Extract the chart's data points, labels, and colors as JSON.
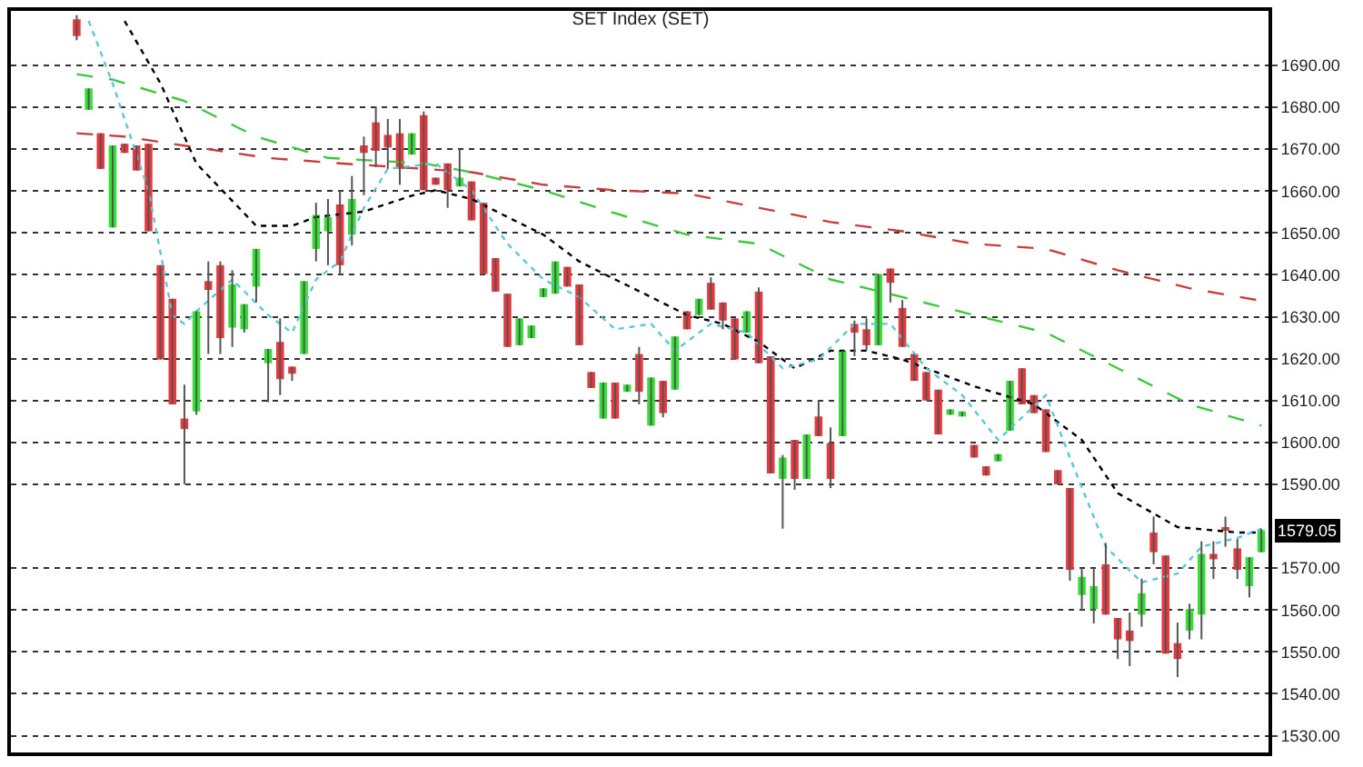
{
  "chart_data": {
    "type": "candlestick",
    "title": "SET Index (SET)",
    "categories": [
      null,
      null,
      null,
      null,
      null,
      null,
      null,
      null,
      null,
      null,
      null,
      null,
      null,
      null,
      null,
      null,
      null,
      null,
      null,
      null,
      null,
      null,
      null,
      null,
      null,
      null,
      null,
      null,
      null,
      null,
      null,
      null,
      null,
      null,
      null,
      null,
      null,
      null,
      null,
      null,
      null,
      null,
      null,
      null,
      null,
      null,
      null,
      null,
      null,
      null,
      null,
      null,
      null,
      null,
      null,
      null,
      null,
      null,
      null,
      null,
      null,
      null,
      null,
      null,
      null,
      null,
      null,
      null,
      null,
      null,
      null,
      null,
      null,
      null,
      null,
      null,
      null,
      null,
      null,
      null,
      null,
      null,
      null,
      null,
      null,
      null,
      null,
      null,
      null,
      null,
      null,
      null,
      null,
      null,
      null,
      null,
      null,
      null,
      null,
      null
    ],
    "ohlc": [
      [
        1701,
        1702,
        1696,
        1697
      ],
      [
        1679.4,
        1684.5,
        1679.4,
        1684.5
      ],
      [
        1673.8,
        1673.8,
        1665.3,
        1665.3
      ],
      [
        1651.3,
        1670.9,
        1651.3,
        1670.9
      ],
      [
        1671.3,
        1671.3,
        1669.1,
        1669.1
      ],
      [
        1670.9,
        1670.9,
        1664.9,
        1664.9
      ],
      [
        1671.3,
        1671.3,
        1650.4,
        1650.4
      ],
      [
        1642.3,
        1642.3,
        1619.8,
        1619.8
      ],
      [
        1634.3,
        1634.3,
        1609.1,
        1609.1
      ],
      [
        1605.7,
        1613.8,
        1590,
        1603.2
      ],
      [
        1607.4,
        1631.3,
        1606.6,
        1631.3
      ],
      [
        1638.5,
        1643.2,
        1621.1,
        1636.4
      ],
      [
        1642.3,
        1643.2,
        1621.1,
        1624.9
      ],
      [
        1627.4,
        1641.1,
        1622.8,
        1637.7
      ],
      [
        1627.0,
        1633.0,
        1626.2,
        1633.0
      ],
      [
        1637.2,
        1646.2,
        1633.4,
        1646.2
      ],
      [
        1618.9,
        1622.3,
        1609.6,
        1622.3
      ],
      [
        1624.0,
        1629.6,
        1611.3,
        1615.1
      ],
      [
        1618.1,
        1618.1,
        1614.7,
        1616.4
      ],
      [
        1621.1,
        1638.5,
        1621.1,
        1638.5
      ],
      [
        1646.2,
        1657.2,
        1643.2,
        1654.3
      ],
      [
        1650.4,
        1658.1,
        1642.3,
        1653.8
      ],
      [
        1656.8,
        1660.2,
        1640,
        1642.3
      ],
      [
        1649.6,
        1663.6,
        1647,
        1658.1
      ],
      [
        1670.9,
        1673.0,
        1659.0,
        1669.1
      ],
      [
        1676.4,
        1680.2,
        1665.7,
        1669.6
      ],
      [
        1673.4,
        1677.2,
        1665.3,
        1670.4
      ],
      [
        1673.8,
        1677.2,
        1661.5,
        1665.3
      ],
      [
        1668.7,
        1673.8,
        1668.7,
        1673.8
      ],
      [
        1678.1,
        1679,
        1660.2,
        1660.2
      ],
      [
        1663.2,
        1663.2,
        1661.5,
        1661.5
      ],
      [
        1666.6,
        1666.6,
        1656,
        1660.2
      ],
      [
        1661.1,
        1670,
        1661.1,
        1663.2
      ],
      [
        1662.3,
        1662.3,
        1653.0,
        1653.0
      ],
      [
        1657.2,
        1657.2,
        1640.2,
        1640.2
      ],
      [
        1644.0,
        1644.0,
        1636.0,
        1636.0
      ],
      [
        1635.5,
        1635.5,
        1622.8,
        1622.8
      ],
      [
        1623.2,
        1629.6,
        1623.2,
        1629.6
      ],
      [
        1624.9,
        1627.9,
        1624.9,
        1627.9
      ],
      [
        1634.7,
        1636.8,
        1634.7,
        1636.8
      ],
      [
        1635.5,
        1643.2,
        1635.5,
        1643.2
      ],
      [
        1641.9,
        1641.9,
        1637.2,
        1637.2
      ],
      [
        1637.7,
        1637.7,
        1623.2,
        1623.2
      ],
      [
        1616.8,
        1616.8,
        1613.0,
        1613.0
      ],
      [
        1605.7,
        1614.3,
        1605.7,
        1614.3
      ],
      [
        1614.3,
        1614.3,
        1605.7,
        1605.7
      ],
      [
        1612.1,
        1613.8,
        1612.1,
        1613.8
      ],
      [
        1621.1,
        1622.8,
        1609.1,
        1612.1
      ],
      [
        1604.0,
        1615.5,
        1604.0,
        1615.5
      ],
      [
        1614.7,
        1614.7,
        1606,
        1607.0
      ],
      [
        1612.6,
        1625.3,
        1612.6,
        1625.3
      ],
      [
        1631.3,
        1631.3,
        1627.0,
        1627.0
      ],
      [
        1630.4,
        1634.3,
        1630.4,
        1634.3
      ],
      [
        1638.1,
        1639.4,
        1631.7,
        1631.7
      ],
      [
        1633.4,
        1633.4,
        1627,
        1629.1
      ],
      [
        1629.6,
        1629.6,
        1619.8,
        1619.8
      ],
      [
        1626.2,
        1631.3,
        1626.2,
        1631.3
      ],
      [
        1636.0,
        1637,
        1618.9,
        1618.9
      ],
      [
        1620.6,
        1620.6,
        1592.6,
        1592.6
      ],
      [
        1591.3,
        1597,
        1579.4,
        1596.4
      ],
      [
        1600.6,
        1600.6,
        1588.7,
        1591.3
      ],
      [
        1591.3,
        1601.9,
        1591.3,
        1601.9
      ],
      [
        1606.2,
        1610,
        1601.5,
        1601.5
      ],
      [
        1599.8,
        1603.6,
        1589.1,
        1591.3
      ],
      [
        1601.5,
        1621.9,
        1601.5,
        1621.9
      ],
      [
        1628.3,
        1629.1,
        1620.6,
        1626.2
      ],
      [
        1627.0,
        1629.6,
        1621.9,
        1623.2
      ],
      [
        1623.2,
        1640.2,
        1623.2,
        1640.2
      ],
      [
        1641.5,
        1641.5,
        1633.4,
        1638.1
      ],
      [
        1632.1,
        1634,
        1622.8,
        1622.8
      ],
      [
        1621.1,
        1621.1,
        1614.7,
        1614.7
      ],
      [
        1616.8,
        1616.8,
        1610.0,
        1610.0
      ],
      [
        1612.6,
        1612.6,
        1601.9,
        1601.9
      ],
      [
        1606.6,
        1607.9,
        1606.6,
        1607.9
      ],
      [
        1606.2,
        1607.4,
        1606.2,
        1607.4
      ],
      [
        1599.4,
        1599.4,
        1596.4,
        1596.4
      ],
      [
        1594.3,
        1594.3,
        1592.1,
        1592.1
      ],
      [
        1595.5,
        1597.2,
        1595.5,
        1597.2
      ],
      [
        1602.8,
        1614.7,
        1602.8,
        1614.7
      ],
      [
        1617.7,
        1617.7,
        1609.1,
        1609.1
      ],
      [
        1611.3,
        1611.3,
        1607.0,
        1607.0
      ],
      [
        1607.9,
        1607.9,
        1597.7,
        1597.7
      ],
      [
        1593.4,
        1593.4,
        1590.0,
        1590.0
      ],
      [
        1589.1,
        1589.1,
        1567,
        1569.6
      ],
      [
        1563.6,
        1570,
        1560,
        1567.9
      ],
      [
        1560.2,
        1570,
        1556.8,
        1565.7
      ],
      [
        1570.9,
        1576,
        1558.9,
        1558.9
      ],
      [
        1558.1,
        1558.1,
        1548.3,
        1553.0
      ],
      [
        1555.1,
        1559.4,
        1546.6,
        1552.6
      ],
      [
        1558.9,
        1567.5,
        1556,
        1564.0
      ],
      [
        1578.5,
        1582.3,
        1570.9,
        1573.8
      ],
      [
        1573.0,
        1573.0,
        1549.6,
        1549.6
      ],
      [
        1552.1,
        1557,
        1544,
        1548.3
      ],
      [
        1555.1,
        1561.5,
        1553,
        1560.2
      ],
      [
        1558.9,
        1576.4,
        1553,
        1573.4
      ],
      [
        1573.4,
        1576.4,
        1567.4,
        1572.1
      ],
      [
        1579.4,
        1582.3,
        1575.1,
        1579.0
      ],
      [
        1574.7,
        1577,
        1567.4,
        1569.6
      ],
      [
        1565.7,
        1572.6,
        1563,
        1572.6
      ],
      [
        1573.8,
        1579.4,
        1573.8,
        1579.05
      ]
    ],
    "colors": [
      "#e8383d",
      "#33e033",
      "#e8383d",
      "#33e033",
      "#e8383d",
      "#e8383d",
      "#e8383d",
      "#e8383d",
      "#e8383d",
      "#e8383d",
      "#33e033",
      "#e8383d",
      "#e8383d",
      "#33e033",
      "#33e033",
      "#33e033",
      "#33e033",
      "#e8383d",
      "#e8383d",
      "#33e033",
      "#33e033",
      "#33e033",
      "#e8383d",
      "#33e033",
      "#e8383d",
      "#e8383d",
      "#e8383d",
      "#e8383d",
      "#33e033",
      "#e8383d",
      "#e8383d",
      "#e8383d",
      "#33e033",
      "#e8383d",
      "#e8383d",
      "#e8383d",
      "#e8383d",
      "#33e033",
      "#33e033",
      "#33e033",
      "#33e033",
      "#e8383d",
      "#e8383d",
      "#e8383d",
      "#33e033",
      "#e8383d",
      "#33e033",
      "#e8383d",
      "#33e033",
      "#e8383d",
      "#33e033",
      "#e8383d",
      "#33e033",
      "#e8383d",
      "#e8383d",
      "#e8383d",
      "#33e033",
      "#e8383d",
      "#e8383d",
      "#33e033",
      "#e8383d",
      "#33e033",
      "#e8383d",
      "#e8383d",
      "#33e033",
      "#e8383d",
      "#e8383d",
      "#33e033",
      "#e8383d",
      "#e8383d",
      "#e8383d",
      "#e8383d",
      "#e8383d",
      "#33e033",
      "#33e033",
      "#e8383d",
      "#e8383d",
      "#33e033",
      "#33e033",
      "#e8383d",
      "#e8383d",
      "#e8383d",
      "#e8383d",
      "#e8383d",
      "#33e033",
      "#33e033",
      "#e8383d",
      "#e8383d",
      "#e8383d",
      "#33e033",
      "#e8383d",
      "#e8383d",
      "#e8383d",
      "#33e033",
      "#33e033",
      "#e8383d",
      "#e8383d",
      "#e8383d",
      "#33e033",
      "#33e033"
    ],
    "series": [
      {
        "type": "line",
        "color": "#c83c3c",
        "line_style": "dashed",
        "values": [
          1673.8,
          null,
          null,
          null,
          1673.0,
          null,
          null,
          null,
          null,
          null,
          1670.4,
          null,
          null,
          null,
          null,
          null,
          1667.9,
          null,
          null,
          null,
          null,
          null,
          1666.6,
          null,
          null,
          null,
          null,
          null,
          null,
          1665.3,
          null,
          null,
          null,
          1664.5,
          null,
          null,
          null,
          null,
          null,
          1661.5,
          null,
          null,
          null,
          null,
          null,
          1660.2,
          null,
          null,
          null,
          null,
          null,
          1659.4,
          null,
          null,
          null,
          null,
          null,
          1656.0,
          null,
          null,
          null,
          null,
          null,
          1652.6,
          null,
          null,
          null,
          null,
          null,
          1650.4,
          null,
          null,
          null,
          null,
          null,
          1647.4,
          null,
          null,
          null,
          null,
          null,
          1646.2,
          null,
          null,
          null,
          null,
          null,
          1641.1,
          null,
          null,
          null,
          null,
          null,
          1636.8,
          null,
          null,
          null,
          null,
          null,
          1633.8
        ]
      },
      {
        "type": "line",
        "color": "#3cc83c",
        "line_style": "dashed",
        "values": [
          1687.9,
          null,
          null,
          1686.6,
          null,
          null,
          null,
          null,
          null,
          1681.5,
          null,
          null,
          null,
          null,
          null,
          1673.0,
          null,
          null,
          null,
          null,
          null,
          1667.9,
          null,
          null,
          null,
          null,
          null,
          null,
          null,
          1666.6,
          null,
          null,
          null,
          1664.5,
          null,
          null,
          null,
          null,
          null,
          1660.2,
          null,
          null,
          null,
          null,
          null,
          1654.7,
          null,
          null,
          null,
          null,
          null,
          1649.6,
          null,
          null,
          null,
          null,
          null,
          1647.4,
          null,
          null,
          null,
          null,
          null,
          1638.9,
          null,
          null,
          null,
          null,
          null,
          1634.7,
          null,
          null,
          null,
          null,
          null,
          1630.4,
          null,
          null,
          null,
          null,
          null,
          1626.2,
          null,
          null,
          null,
          null,
          null,
          1617.7,
          null,
          null,
          null,
          null,
          null,
          1609.1,
          null,
          null,
          null,
          null,
          null,
          1604.0
        ]
      },
      {
        "type": "line",
        "color": "#000000",
        "line_style": "dotted",
        "values": [
          null,
          null,
          null,
          null,
          1700.6,
          null,
          null,
          1685.7,
          null,
          null,
          1666.6,
          null,
          null,
          null,
          null,
          1651.7,
          null,
          null,
          1651.7,
          null,
          1653.8,
          null,
          null,
          null,
          1655.1,
          null,
          null,
          null,
          1658.9,
          null,
          1660.2,
          null,
          null,
          1658.1,
          null,
          null,
          1653.8,
          null,
          null,
          1649.6,
          null,
          null,
          1643.2,
          null,
          null,
          1638.9,
          null,
          null,
          1634.7,
          null,
          null,
          1630.4,
          null,
          null,
          1628.3,
          null,
          null,
          1624.0,
          null,
          null,
          1617.7,
          null,
          null,
          1621.9,
          null,
          null,
          1621.9,
          null,
          null,
          1619.8,
          null,
          null,
          null,
          null,
          null,
          1613.4,
          null,
          null,
          null,
          null,
          1609.1,
          null,
          null,
          null,
          1600.6,
          null,
          null,
          1587.9,
          null,
          null,
          null,
          null,
          1579.8,
          null,
          null,
          null,
          null,
          1578.5,
          null,
          1578.5
        ]
      },
      {
        "type": "line",
        "color": "#5bc8d8",
        "line_style": "dotted",
        "values": [
          null,
          1700.6,
          null,
          1685.7,
          null,
          null,
          1660.2,
          null,
          1630.4,
          1628.3,
          1631.3,
          null,
          null,
          1638.9,
          null,
          null,
          1630.4,
          null,
          1626.2,
          null,
          1638.9,
          null,
          1643.2,
          null,
          1656.0,
          null,
          1665.3,
          null,
          null,
          null,
          1666.6,
          null,
          null,
          1660.2,
          null,
          null,
          1647.4,
          null,
          null,
          1638.9,
          null,
          null,
          1634.7,
          null,
          null,
          1627.0,
          null,
          null,
          1628.3,
          null,
          1621.9,
          null,
          null,
          1628.3,
          null,
          null,
          1626.2,
          null,
          null,
          1617.7,
          null,
          null,
          1619.8,
          null,
          null,
          1628.3,
          null,
          null,
          1628.3,
          null,
          null,
          1617.7,
          null,
          null,
          1611.3,
          null,
          null,
          1600.6,
          null,
          null,
          null,
          1611.3,
          null,
          1596.4,
          null,
          null,
          1575.1,
          null,
          null,
          1566.6,
          null,
          null,
          1568.7,
          null,
          1575.1,
          null,
          null,
          1577.2,
          null,
          1579.4
        ]
      }
    ],
    "ylim": [
      1526,
      1703
    ],
    "yticks": [
      {
        "value": 1530,
        "label": "1530.00"
      },
      {
        "value": 1540,
        "label": "1540.00"
      },
      {
        "value": 1550,
        "label": "1550.00"
      },
      {
        "value": 1560,
        "label": "1560.00"
      },
      {
        "value": 1570,
        "label": "1570.00"
      },
      {
        "value": 1590,
        "label": "1590.00"
      },
      {
        "value": 1600,
        "label": "1600.00"
      },
      {
        "value": 1610,
        "label": "1610.00"
      },
      {
        "value": 1620,
        "label": "1620.00"
      },
      {
        "value": 1630,
        "label": "1630.00"
      },
      {
        "value": 1640,
        "label": "1640.00"
      },
      {
        "value": 1650,
        "label": "1650.00"
      },
      {
        "value": 1660,
        "label": "1660.00"
      },
      {
        "value": 1670,
        "label": "1670.00"
      },
      {
        "value": 1680,
        "label": "1680.00"
      },
      {
        "value": 1690,
        "label": "1690.00"
      }
    ],
    "annotations": [
      "1579.05"
    ],
    "grid": "y"
  }
}
